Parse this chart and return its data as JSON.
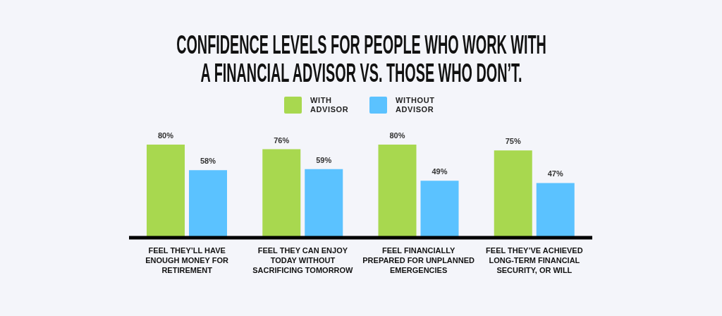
{
  "chart_data": {
    "type": "bar",
    "title": "CONFIDENCE LEVELS FOR PEOPLE WHO WORK WITH A FINANCIAL ADVISOR VS. THOSE WHO DON’T.",
    "categories": [
      "FEEL THEY’LL HAVE ENOUGH MONEY FOR RETIREMENT",
      "FEEL THEY CAN ENJOY TODAY WITHOUT SACRIFICING TOMORROW",
      "FEEL FINANCIALLY PREPARED FOR UNPLANNED EMERGENCIES",
      "FEEL THEY’VE ACHIEVED LONG-TERM FINANCIAL SECURITY, OR WILL"
    ],
    "series": [
      {
        "name": "WITH ADVISOR",
        "color": "#a8d84f",
        "values": [
          80,
          76,
          80,
          75
        ],
        "value_labels": [
          "80%",
          "76%",
          "80%",
          "75%"
        ]
      },
      {
        "name": "WITHOUT ADVISOR",
        "color": "#5bc2ff",
        "values": [
          58,
          59,
          49,
          47
        ],
        "value_labels": [
          "58%",
          "59%",
          "49%",
          "47%"
        ]
      }
    ],
    "legend": "top"
  }
}
